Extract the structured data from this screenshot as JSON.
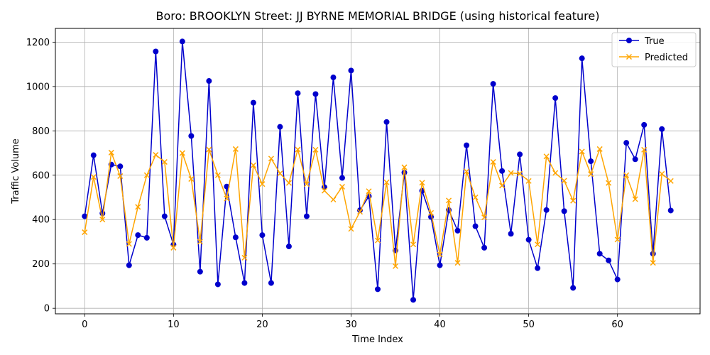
{
  "chart_data": {
    "type": "line",
    "title": "Boro: BROOKLYN Street: JJ BYRNE MEMORIAL BRIDGE (using historical feature)",
    "xlabel": "Time Index",
    "ylabel": "Traffic Volume",
    "xlim": [
      -3.3,
      69.3
    ],
    "ylim": [
      -25,
      1262
    ],
    "xticks": [
      0,
      10,
      20,
      30,
      40,
      50,
      60
    ],
    "yticks": [
      0,
      200,
      400,
      600,
      800,
      1000,
      1200
    ],
    "grid": true,
    "legend_position": "top-right",
    "series": [
      {
        "name": "True",
        "color": "#0000cc",
        "marker": "circle",
        "values": [
          415,
          690,
          428,
          648,
          640,
          194,
          330,
          318,
          1158,
          415,
          287,
          1203,
          777,
          165,
          1025,
          108,
          549,
          320,
          114,
          927,
          330,
          114,
          818,
          279,
          970,
          415,
          966,
          546,
          1041,
          588,
          1072,
          442,
          505,
          86,
          840,
          261,
          612,
          38,
          530,
          412,
          194,
          443,
          350,
          735,
          370,
          273,
          1012,
          619,
          336,
          694,
          309,
          181,
          443,
          948,
          438,
          92,
          1127,
          663,
          246,
          216,
          130,
          746,
          672,
          827,
          246,
          808,
          441
        ]
      },
      {
        "name": "Predicted",
        "color": "#ffa500",
        "marker": "x",
        "values": [
          343,
          592,
          400,
          702,
          596,
          290,
          457,
          600,
          692,
          660,
          273,
          700,
          583,
          300,
          716,
          600,
          495,
          718,
          228,
          645,
          560,
          675,
          608,
          565,
          716,
          560,
          715,
          530,
          490,
          548,
          358,
          435,
          528,
          306,
          568,
          190,
          636,
          288,
          566,
          430,
          243,
          486,
          205,
          617,
          500,
          410,
          660,
          553,
          610,
          607,
          574,
          288,
          685,
          610,
          575,
          485,
          707,
          605,
          718,
          565,
          310,
          600,
          492,
          715,
          205,
          606,
          574
        ]
      }
    ]
  }
}
